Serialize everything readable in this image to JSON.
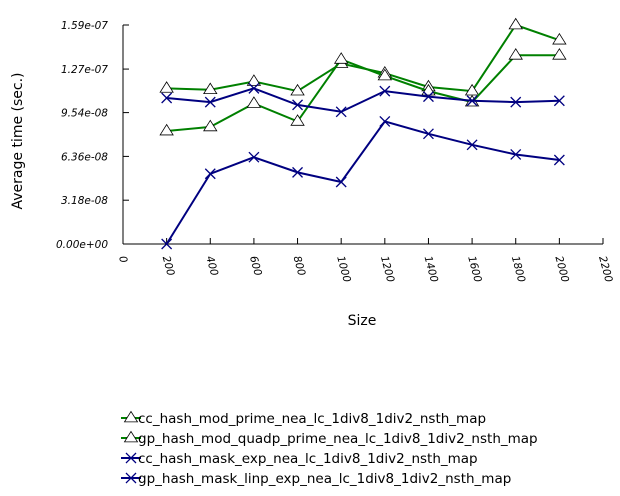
{
  "chart_data": {
    "type": "line",
    "xlabel": "Size",
    "ylabel": "Average time (sec.)",
    "xlim": [
      0,
      2200
    ],
    "ylim": [
      0,
      1.59e-07
    ],
    "x_ticks": [
      "0",
      "200",
      "400",
      "600",
      "800",
      "1000",
      "1200",
      "1400",
      "1600",
      "1800",
      "2000",
      "2200"
    ],
    "y_ticks": [
      "0.00e+00",
      "3.18e-08",
      "6.36e-08",
      "9.54e-08",
      "1.27e-07",
      "1.59e-07"
    ],
    "x": [
      200,
      400,
      600,
      800,
      1000,
      1200,
      1400,
      1600,
      1800,
      2000
    ],
    "grid": false,
    "legend_position": "bottom",
    "series": [
      {
        "name": "cc_hash_mod_prime_nea_lc_1div8_1div2_nsth_map",
        "color": "#008000",
        "marker": "triangle",
        "values": [
          1.13e-07,
          1.12e-07,
          1.18e-07,
          1.11e-07,
          1.31e-07,
          1.24e-07,
          1.14e-07,
          1.11e-07,
          1.59e-07,
          1.48e-07
        ]
      },
      {
        "name": "gp_hash_mod_quadp_prime_nea_lc_1div8_1div2_nsth_map",
        "color": "#008000",
        "marker": "triangle",
        "values": [
          8.2e-08,
          8.5e-08,
          1.02e-07,
          8.9e-08,
          1.34e-07,
          1.22e-07,
          1.11e-07,
          1.03e-07,
          1.37e-07,
          1.37e-07
        ]
      },
      {
        "name": "cc_hash_mask_exp_nea_lc_1div8_1div2_nsth_map",
        "color": "#000080",
        "marker": "x",
        "values": [
          1.06e-07,
          1.03e-07,
          1.13e-07,
          1.01e-07,
          9.6e-08,
          1.11e-07,
          1.07e-07,
          1.04e-07,
          1.03e-07,
          1.04e-07
        ]
      },
      {
        "name": "gp_hash_mask_linp_exp_nea_lc_1div8_1div2_nsth_map",
        "color": "#000080",
        "marker": "x",
        "values": [
          0,
          5.1e-08,
          6.3e-08,
          5.2e-08,
          4.5e-08,
          8.9e-08,
          8e-08,
          7.2e-08,
          6.5e-08,
          6.1e-08
        ]
      }
    ]
  }
}
